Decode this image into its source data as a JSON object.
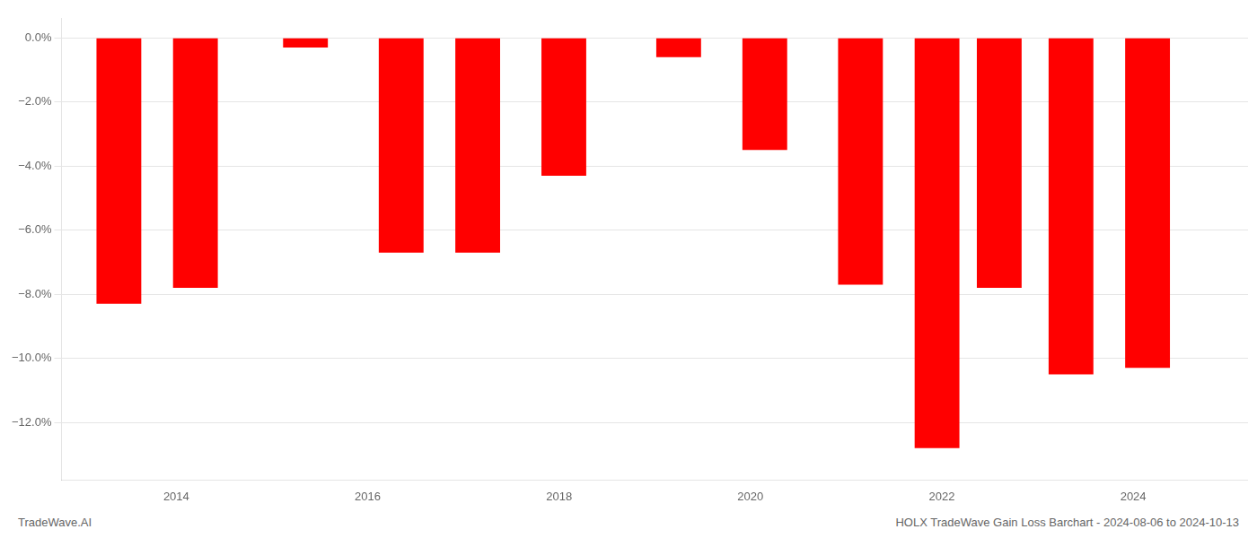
{
  "chart_data": {
    "type": "bar",
    "x": [
      2013.4,
      2014.2,
      2015.35,
      2016.35,
      2017.15,
      2018.05,
      2019.25,
      2020.15,
      2021.15,
      2021.95,
      2022.6,
      2023.35,
      2024.15
    ],
    "values": [
      -8.3,
      -7.8,
      -0.3,
      -6.7,
      -6.7,
      -4.3,
      -0.6,
      -3.5,
      -7.7,
      -12.8,
      -7.8,
      -10.5,
      -10.3
    ],
    "color": "#ff0000",
    "xlim": [
      2012.8,
      2025.2
    ],
    "xticks": [
      2014,
      2016,
      2018,
      2020,
      2022,
      2024
    ],
    "ylim": [
      -13.8,
      0.6
    ],
    "yticks": [
      {
        "value": 0.0,
        "label": "0.0%"
      },
      {
        "value": -2.0,
        "label": "−2.0%"
      },
      {
        "value": -4.0,
        "label": "−4.0%"
      },
      {
        "value": -6.0,
        "label": "−6.0%"
      },
      {
        "value": -8.0,
        "label": "−8.0%"
      },
      {
        "value": -10.0,
        "label": "−10.0%"
      },
      {
        "value": -12.0,
        "label": "−12.0%"
      }
    ],
    "grid": true,
    "annotations": [
      "TradeWave.AI",
      "HOLX TradeWave Gain Loss Barchart - 2024-08-06 to 2024-10-13"
    ]
  }
}
